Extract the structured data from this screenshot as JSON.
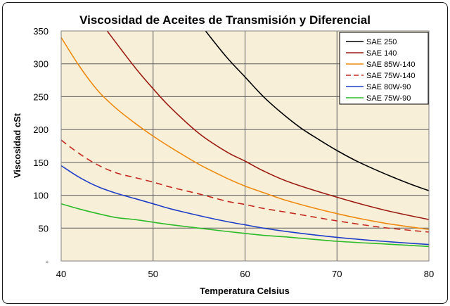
{
  "chart_data": {
    "type": "line",
    "title": "Viscosidad de Aceites de Transmisión y Diferencial",
    "xlabel": "Temperatura Celsius",
    "ylabel": "Viscosidad cSt",
    "xlim": [
      40,
      80
    ],
    "ylim": [
      0,
      350
    ],
    "x_ticks": [
      40,
      50,
      60,
      70,
      80
    ],
    "y_tick_labels": [
      "-",
      "50",
      "100",
      "150",
      "200",
      "250",
      "300",
      "350"
    ],
    "y_tick_values": [
      0,
      50,
      100,
      150,
      200,
      250,
      300,
      350
    ],
    "grid": true,
    "legend_position": "top-right",
    "plot_background": "#f8efd8",
    "series": [
      {
        "name": "SAE 250",
        "color": "#000000",
        "dash": false,
        "x": [
          55.7,
          58,
          60,
          62,
          64,
          66,
          68,
          70,
          72,
          74,
          76,
          78,
          80
        ],
        "y": [
          350,
          310,
          280,
          250,
          225,
          203,
          185,
          168,
          153,
          140,
          128,
          117,
          107
        ]
      },
      {
        "name": "SAE 140",
        "color": "#9b1c14",
        "dash": false,
        "x": [
          45,
          48,
          50,
          52,
          55,
          58,
          60,
          62,
          65,
          70,
          75,
          80
        ],
        "y": [
          350,
          295,
          262,
          232,
          194,
          166,
          152,
          137,
          119,
          97,
          78,
          63
        ]
      },
      {
        "name": "SAE 85W-140",
        "color": "#ee8a10",
        "dash": false,
        "x": [
          40,
          42,
          44,
          46,
          48,
          50,
          52,
          55,
          58,
          60,
          62,
          65,
          70,
          75,
          80
        ],
        "y": [
          340,
          296,
          259,
          232,
          210,
          190,
          172,
          147,
          126,
          114,
          104,
          90,
          72,
          58,
          48
        ]
      },
      {
        "name": "SAE 75W-140",
        "color": "#c42820",
        "dash": true,
        "x": [
          40,
          42,
          44,
          46,
          48,
          50,
          52,
          55,
          58,
          60,
          62,
          65,
          70,
          75,
          80
        ],
        "y": [
          184,
          163,
          146,
          134,
          127,
          120,
          112,
          102,
          91,
          86,
          80,
          73,
          61,
          51,
          44
        ]
      },
      {
        "name": "SAE 80W-90",
        "color": "#1f3ec8",
        "dash": false,
        "x": [
          40,
          42,
          44,
          46,
          48,
          50,
          52,
          55,
          58,
          60,
          62,
          65,
          70,
          75,
          80
        ],
        "y": [
          145,
          127,
          113,
          103,
          95,
          87,
          79,
          69,
          60,
          55,
          50,
          44,
          36,
          30,
          25
        ]
      },
      {
        "name": "SAE 75W-90",
        "color": "#2dbb2a",
        "dash": false,
        "x": [
          40,
          42,
          44,
          46,
          48,
          50,
          52,
          55,
          58,
          60,
          62,
          65,
          70,
          75,
          80
        ],
        "y": [
          87,
          79,
          72,
          66,
          63,
          59,
          55,
          50,
          45,
          42,
          39,
          36,
          30,
          26,
          22
        ]
      }
    ]
  }
}
